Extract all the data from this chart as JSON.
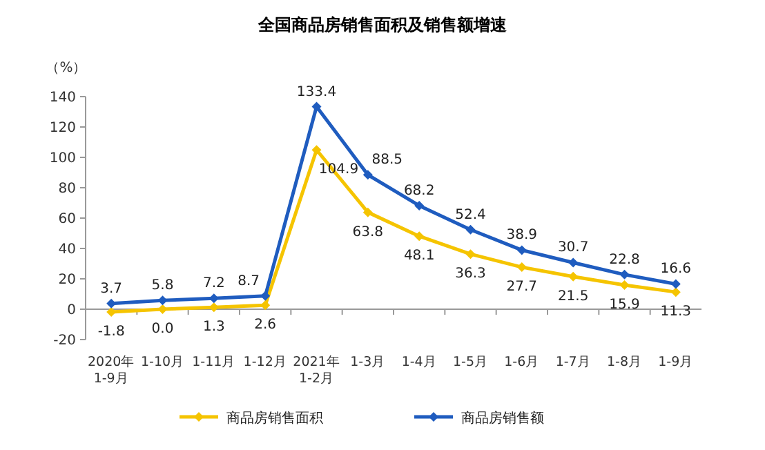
{
  "chart_data": {
    "type": "line",
    "title": "全国商品房销售面积及销售额增速",
    "ylabel": "（%）",
    "categories": [
      "2020年 1-9月",
      "1-10月",
      "1-11月",
      "1-12月",
      "2021年 1-2月",
      "1-3月",
      "1-4月",
      "1-5月",
      "1-6月",
      "1-7月",
      "1-8月",
      "1-9月"
    ],
    "series": [
      {
        "name": "商品房销售面积",
        "color": "#f5c400",
        "values": [
          -1.8,
          0.0,
          1.3,
          2.6,
          104.9,
          63.8,
          48.1,
          36.3,
          27.7,
          21.5,
          15.9,
          11.3
        ],
        "value_labels": [
          "-1.8",
          "0.0",
          "1.3",
          "2.6",
          "104.9",
          "63.8",
          "48.1",
          "36.3",
          "27.7",
          "21.5",
          "15.9",
          "11.3"
        ]
      },
      {
        "name": "商品房销售额",
        "color": "#1f5cbf",
        "values": [
          3.7,
          5.8,
          7.2,
          8.7,
          133.4,
          88.5,
          68.2,
          52.4,
          38.9,
          30.7,
          22.8,
          16.6
        ],
        "value_labels": [
          "3.7",
          "5.8",
          "7.2",
          "8.7",
          "133.4",
          "88.5",
          "68.2",
          "52.4",
          "38.9",
          "30.7",
          "22.8",
          "16.6"
        ]
      }
    ],
    "ylim": [
      -20,
      140
    ],
    "yticks": [
      -20,
      0,
      20,
      40,
      60,
      80,
      100,
      120,
      140
    ],
    "marker": "diamond",
    "line_style": "solid",
    "legend": "bottom"
  }
}
